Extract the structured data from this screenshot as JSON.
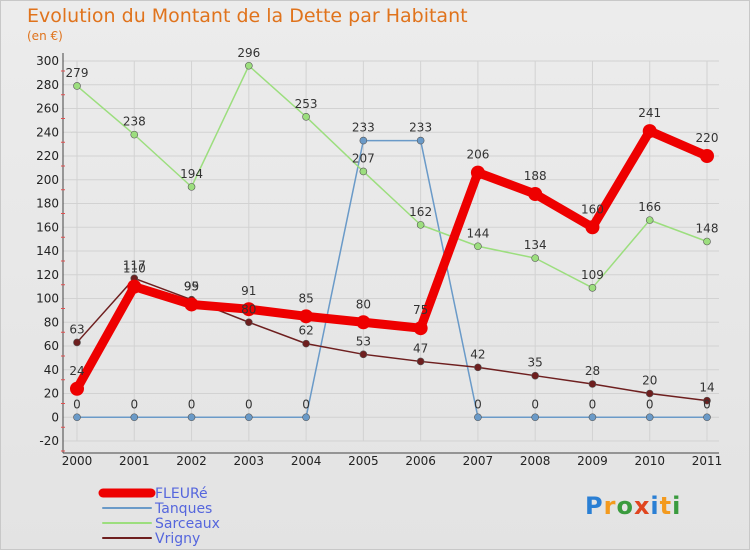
{
  "header": {
    "title": "Evolution du Montant de la Dette par Habitant",
    "unit": "(en €)"
  },
  "logo_text": "Proxiti",
  "chart_data": {
    "type": "line",
    "title": "Evolution du Montant de la Dette par Habitant",
    "subtitle": "(en €)",
    "xlabel": "",
    "ylabel": "",
    "ylim": [
      -20,
      300
    ],
    "ytick_step": 20,
    "grid": true,
    "legend_position": "bottom-left",
    "categories": [
      "2000",
      "2001",
      "2002",
      "2003",
      "2004",
      "2005",
      "2006",
      "2007",
      "2008",
      "2009",
      "2010",
      "2011"
    ],
    "series": [
      {
        "name": "FLEURé",
        "color": "#ee0000",
        "width": 9,
        "marker": 7,
        "values": [
          24,
          110,
          95,
          91,
          85,
          80,
          75,
          206,
          188,
          160,
          241,
          220
        ],
        "labels": [
          "24",
          "110",
          "95",
          "91",
          "85",
          "80",
          "75",
          "206",
          "188",
          "160",
          "241",
          "220"
        ]
      },
      {
        "name": "Tanques",
        "color": "#6a9ac8",
        "width": 1.5,
        "marker": 3.5,
        "values": [
          0,
          0,
          0,
          0,
          0,
          233,
          233,
          0,
          0,
          0,
          0,
          0
        ],
        "labels": [
          "0",
          "0",
          "0",
          "0",
          "0",
          "233",
          "233",
          "0",
          "0",
          "0",
          "0",
          "0"
        ]
      },
      {
        "name": "Sarceaux",
        "color": "#9cde7e",
        "width": 1.5,
        "marker": 3.5,
        "values": [
          279,
          238,
          194,
          296,
          253,
          207,
          162,
          144,
          134,
          109,
          166,
          148
        ],
        "labels": [
          "279",
          "238",
          "194",
          "296",
          "253",
          "207",
          "162",
          "144",
          "134",
          "109",
          "166",
          "148"
        ]
      },
      {
        "name": "Vrigny",
        "color": "#6e1f1f",
        "width": 1.5,
        "marker": 3.5,
        "values": [
          63,
          117,
          99,
          80,
          62,
          53,
          47,
          42,
          35,
          28,
          20,
          14
        ],
        "labels": [
          "63",
          "117",
          "99",
          "80",
          "62",
          "53",
          "47",
          "42",
          "35",
          "28",
          "20",
          "14"
        ]
      }
    ]
  }
}
